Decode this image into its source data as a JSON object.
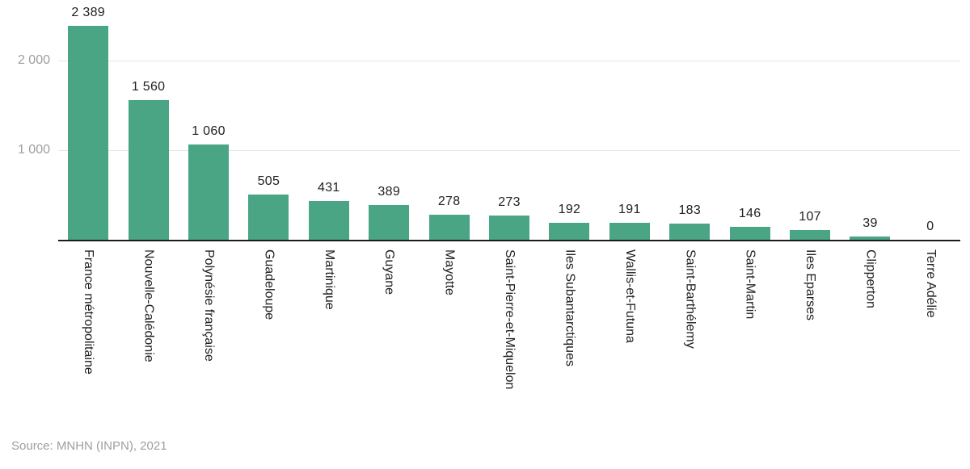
{
  "chart_data": {
    "type": "bar",
    "title": "",
    "categories": [
      "France métropolitaine",
      "Nouvelle-Calédonie",
      "Polynésie française",
      "Guadeloupe",
      "Martinique",
      "Guyane",
      "Mayotte",
      "Saint-Pierre-et-Miquelon",
      "Iles Subantarctiques",
      "Wallis-et-Futuna",
      "Saint-Barthélemy",
      "Saint-Martin",
      "Iles Eparses",
      "Clipperton",
      "Terre Adélie"
    ],
    "values": [
      2389,
      1560,
      1060,
      505,
      431,
      389,
      278,
      273,
      192,
      191,
      183,
      146,
      107,
      39,
      0
    ],
    "value_labels": [
      "2 389",
      "1 560",
      "1 060",
      "505",
      "431",
      "389",
      "278",
      "273",
      "192",
      "191",
      "183",
      "146",
      "107",
      "39",
      "0"
    ],
    "xlabel": "",
    "ylabel": "",
    "ylim": [
      0,
      2676
    ],
    "y_ticks": [
      {
        "value": 1000,
        "label": "1 000"
      },
      {
        "value": 2000,
        "label": "2 000"
      }
    ],
    "grid": true,
    "legend": "none",
    "bar_color": "#4aa584",
    "source": "Source: MNHN (INPN), 2021"
  },
  "colors": {
    "bar": "#4aa584",
    "axis_line": "#1c1c1c",
    "gridline": "#e6e6e6",
    "value_text": "#212121",
    "category_text": "#212121",
    "muted_text": "#9e9e9e",
    "background": "#ffffff"
  }
}
